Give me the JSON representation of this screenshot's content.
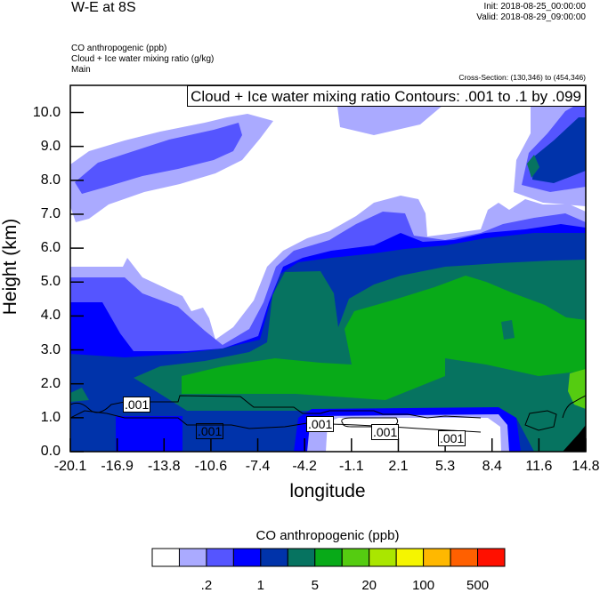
{
  "header": {
    "title": "W-E at 8S",
    "init": "Init: 2018-08-25_00:00:00",
    "valid": "Valid: 2018-08-29_09:00:00",
    "subtitles": [
      "CO anthropogenic   (ppb)",
      "Cloud + Ice water mixing ratio   (g/kg)",
      "Main"
    ],
    "cross_section": "Cross-Section: (130,346) to (454,346)"
  },
  "chart_data": {
    "type": "heatmap",
    "title": "W-E at 8S",
    "xlabel": "longitude",
    "ylabel": "Height (km)",
    "xlim": [
      -20.1,
      14.8
    ],
    "ylim": [
      0.0,
      10.8
    ],
    "x_ticks": [
      "-20.1",
      "-16.9",
      "-13.8",
      "-10.6",
      "-7.4",
      "-4.2",
      "-1.1",
      "2.1",
      "5.3",
      "8.4",
      "11.6",
      "14.8"
    ],
    "y_ticks": [
      "0.0",
      "1.0",
      "2.0",
      "3.0",
      "4.0",
      "5.0",
      "6.0",
      "7.0",
      "8.0",
      "9.0",
      "10.0"
    ],
    "contour_info": "Cloud + Ice water mixing ratio Contours: .001 to .1 by .099",
    "contour_labels": [
      ".001",
      ".001",
      ".001",
      ".001",
      ".001"
    ],
    "colorbar": {
      "title": "CO anthropogenic  (ppb)",
      "levels": [
        0.1,
        0.2,
        0.5,
        1,
        2,
        5,
        10,
        20,
        50,
        100,
        200,
        500
      ],
      "shown_labels": [
        ".2",
        "1",
        "5",
        "20",
        "100",
        "500"
      ],
      "colors": [
        "#ffffff",
        "#aaaaff",
        "#5555ff",
        "#0000ff",
        "#0033aa",
        "#067360",
        "#08aa18",
        "#55cc11",
        "#aae600",
        "#f5f500",
        "#ffb800",
        "#ff6000",
        "#ff1000"
      ]
    }
  }
}
